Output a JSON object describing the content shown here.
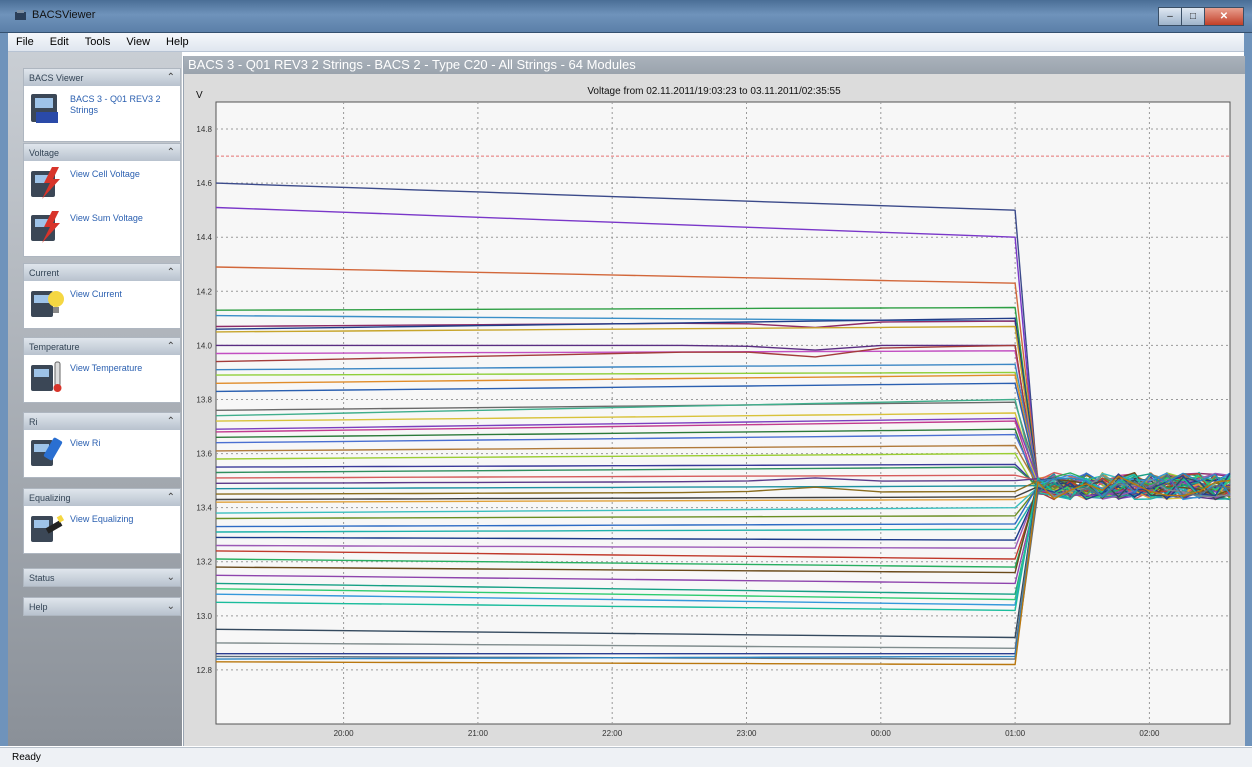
{
  "window": {
    "title": "BACSViewer",
    "min": "–",
    "max": "□",
    "close": "✕"
  },
  "menu": [
    "File",
    "Edit",
    "Tools",
    "View",
    "Help"
  ],
  "sidebar": {
    "groups": [
      {
        "header": "BACS Viewer",
        "items": [
          {
            "label": "BACS 3 - Q01 REV3 2 Strings",
            "icon": "bacs-device-icon"
          }
        ]
      },
      {
        "header": "Voltage",
        "items": [
          {
            "label": "View Cell Voltage",
            "icon": "cell-voltage-icon"
          },
          {
            "label": "View Sum Voltage",
            "icon": "sum-voltage-icon"
          }
        ]
      },
      {
        "header": "Current",
        "items": [
          {
            "label": "View Current",
            "icon": "current-bulb-icon"
          }
        ]
      },
      {
        "header": "Temperature",
        "items": [
          {
            "label": "View Temperature",
            "icon": "thermometer-icon"
          }
        ]
      },
      {
        "header": "Ri",
        "items": [
          {
            "label": "View Ri",
            "icon": "ri-meter-icon"
          }
        ]
      },
      {
        "header": "Equalizing",
        "items": [
          {
            "label": "View Equalizing",
            "icon": "equalizing-icon"
          }
        ]
      },
      {
        "header": "Status",
        "items": []
      },
      {
        "header": "Help",
        "items": []
      }
    ]
  },
  "chart_header": "BACS 3 - Q01 REV3 2 Strings - BACS 2 - Type C20 - All Strings - 64 Modules",
  "status": "Ready",
  "chart_data": {
    "type": "line",
    "title": "Voltage from 02.11.2011/19:03:23 to 03.11.2011/02:35:55",
    "ylabel": "V",
    "xlabel": "",
    "ylim": [
      12.6,
      14.9
    ],
    "yticks": [
      "12.8",
      "13.0",
      "13.2",
      "13.4",
      "13.6",
      "13.8",
      "14.0",
      "14.2",
      "14.4",
      "14.6",
      "14.8"
    ],
    "ytick_values": [
      12.8,
      13.0,
      13.2,
      13.4,
      13.6,
      13.8,
      14.0,
      14.2,
      14.4,
      14.6,
      14.8
    ],
    "xlim": [
      19.05,
      26.6
    ],
    "xticks": [
      "20:00",
      "21:00",
      "22:00",
      "23:00",
      "00:00",
      "01:00",
      "02:00"
    ],
    "xtick_values": [
      20,
      21,
      22,
      23,
      24,
      25,
      26
    ],
    "threshold": 14.7,
    "threshold_color": "#e57373",
    "grid": true,
    "drop_time": 25.0,
    "drop_end": 25.17,
    "settle": 13.48,
    "series": [
      {
        "color": "#3b4a8a",
        "v0": 14.6,
        "v1": 14.5
      },
      {
        "color": "#7a37c9",
        "v0": 14.51,
        "v1": 14.4
      },
      {
        "color": "#d2673a",
        "v0": 14.29,
        "v1": 14.23
      },
      {
        "color": "#2e9f44",
        "v0": 14.13,
        "v1": 14.14
      },
      {
        "color": "#3a8fc8",
        "v0": 14.11,
        "v1": 14.09
      },
      {
        "color": "#8d2b68",
        "v0": 14.07,
        "v1": 14.09,
        "dip": 14.02
      },
      {
        "color": "#1f3c88",
        "v0": 14.06,
        "v1": 14.1
      },
      {
        "color": "#c7a52c",
        "v0": 14.05,
        "v1": 14.07
      },
      {
        "color": "#5a2d82",
        "v0": 14.0,
        "v1": 14.0,
        "dip": 13.94
      },
      {
        "color": "#c24fc2",
        "v0": 13.97,
        "v1": 13.98
      },
      {
        "color": "#a33b3b",
        "v0": 13.94,
        "v1": 14.0,
        "dip": 13.89
      },
      {
        "color": "#3b86c4",
        "v0": 13.91,
        "v1": 13.93
      },
      {
        "color": "#8fcf3a",
        "v0": 13.89,
        "v1": 13.9
      },
      {
        "color": "#e08c2a",
        "v0": 13.86,
        "v1": 13.89
      },
      {
        "color": "#2a5fb0",
        "v0": 13.83,
        "v1": 13.86
      },
      {
        "color": "#6a6a6a",
        "v0": 13.76,
        "v1": 13.79
      },
      {
        "color": "#3fae8c",
        "v0": 13.74,
        "v1": 13.8
      },
      {
        "color": "#d8c23a",
        "v0": 13.72,
        "v1": 13.75
      },
      {
        "color": "#7b3fbf",
        "v0": 13.69,
        "v1": 13.73
      },
      {
        "color": "#c23b8f",
        "v0": 13.68,
        "v1": 13.72
      },
      {
        "color": "#2c7a3a",
        "v0": 13.66,
        "v1": 13.69
      },
      {
        "color": "#4a6fd1",
        "v0": 13.64,
        "v1": 13.67
      },
      {
        "color": "#b07a3a",
        "v0": 13.61,
        "v1": 13.63
      },
      {
        "color": "#9acd32",
        "v0": 13.58,
        "v1": 13.6
      },
      {
        "color": "#3a3a9a",
        "v0": 13.55,
        "v1": 13.56
      },
      {
        "color": "#2f8f5f",
        "v0": 13.53,
        "v1": 13.55
      },
      {
        "color": "#d65c5c",
        "v0": 13.51,
        "v1": 13.52
      },
      {
        "color": "#5b3a8a",
        "v0": 13.49,
        "v1": 13.5,
        "bump": 13.54
      },
      {
        "color": "#1e90a0",
        "v0": 13.47,
        "v1": 13.48
      },
      {
        "color": "#8a6d1e",
        "v0": 13.45,
        "v1": 13.46,
        "bump": 13.52
      },
      {
        "color": "#404040",
        "v0": 13.43,
        "v1": 13.44
      },
      {
        "color": "#e0a13a",
        "v0": 13.42,
        "v1": 13.43
      },
      {
        "color": "#3bbfbf",
        "v0": 13.38,
        "v1": 13.4
      },
      {
        "color": "#6b8e23",
        "v0": 13.36,
        "v1": 13.37
      },
      {
        "color": "#2d6bc4",
        "v0": 13.33,
        "v1": 13.34
      },
      {
        "color": "#20b2aa",
        "v0": 13.31,
        "v1": 13.32
      },
      {
        "color": "#1a3a8a",
        "v0": 13.29,
        "v1": 13.28
      },
      {
        "color": "#9b59b6",
        "v0": 13.26,
        "v1": 13.25
      },
      {
        "color": "#c0392b",
        "v0": 13.24,
        "v1": 13.21
      },
      {
        "color": "#27ae60",
        "v0": 13.21,
        "v1": 13.18
      },
      {
        "color": "#6a4a1a",
        "v0": 13.18,
        "v1": 13.16
      },
      {
        "color": "#8e44ad",
        "v0": 13.15,
        "v1": 13.12
      },
      {
        "color": "#16a085",
        "v0": 13.12,
        "v1": 13.08
      },
      {
        "color": "#2ecc71",
        "v0": 13.1,
        "v1": 13.06
      },
      {
        "color": "#3498db",
        "v0": 13.08,
        "v1": 13.04
      },
      {
        "color": "#1abc9c",
        "v0": 13.05,
        "v1": 13.02
      },
      {
        "color": "#34495e",
        "v0": 12.95,
        "v1": 12.92
      },
      {
        "color": "#7f8c8d",
        "v0": 12.9,
        "v1": 12.88
      },
      {
        "color": "#2c3e90",
        "v0": 12.86,
        "v1": 12.86
      },
      {
        "color": "#5d6d7e",
        "v0": 12.85,
        "v1": 12.84
      },
      {
        "color": "#2e86c1",
        "v0": 12.84,
        "v1": 12.85
      },
      {
        "color": "#b9770e",
        "v0": 12.83,
        "v1": 12.82
      }
    ]
  }
}
